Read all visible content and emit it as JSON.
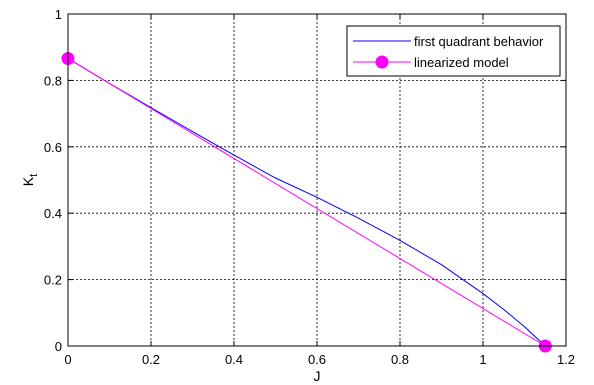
{
  "chart_data": {
    "type": "line",
    "xlabel": "J",
    "ylabel_main": "K",
    "ylabel_sub": "t",
    "xlim": [
      0,
      1.2
    ],
    "ylim": [
      0,
      1
    ],
    "x_ticks": [
      0,
      0.2,
      0.4,
      0.6,
      0.8,
      1,
      1.2
    ],
    "x_tick_labels": [
      "0",
      "0.2",
      "0.4",
      "0.6",
      "0.8",
      "1",
      "1.2"
    ],
    "y_ticks": [
      0,
      0.2,
      0.4,
      0.6,
      0.8,
      1
    ],
    "y_tick_labels": [
      "0",
      "0.2",
      "0.4",
      "0.6",
      "0.8",
      "1"
    ],
    "grid": true,
    "legend_position": "top-right",
    "series": [
      {
        "name": "first quadrant behavior",
        "color": "#0000ff",
        "marker": "none",
        "x": [
          0,
          0.1,
          0.2,
          0.3,
          0.4,
          0.5,
          0.6,
          0.7,
          0.8,
          0.9,
          1.0,
          1.05,
          1.1,
          1.15
        ],
        "y": [
          0.866,
          0.791,
          0.718,
          0.646,
          0.575,
          0.506,
          0.448,
          0.385,
          0.318,
          0.245,
          0.158,
          0.11,
          0.058,
          0.0
        ]
      },
      {
        "name": "linearized model",
        "color": "#ff00ff",
        "marker": "circle",
        "x": [
          0,
          1.15
        ],
        "y": [
          0.866,
          0.0
        ]
      }
    ]
  }
}
